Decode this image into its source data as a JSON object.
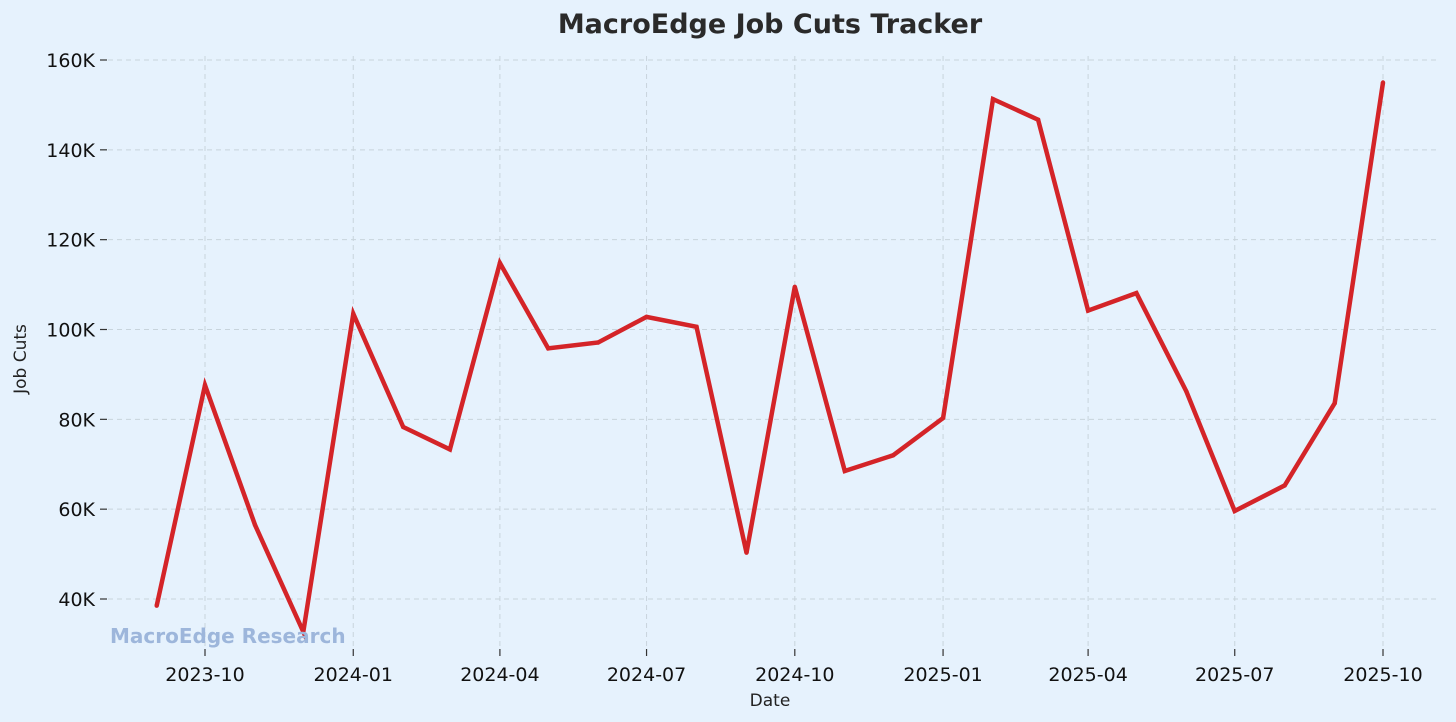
{
  "chart_data": {
    "type": "line",
    "title": "MacroEdge Job Cuts Tracker",
    "xlabel": "Date",
    "ylabel": "Job Cuts",
    "watermark": "MacroEdge Research",
    "x_ticks": [
      "2023-10-01",
      "2024-01-01",
      "2024-04-01",
      "2024-07-01",
      "2024-10-01",
      "2025-01-01",
      "2025-04-01",
      "2025-07-01",
      "2025-10-01"
    ],
    "x_tick_labels": [
      "2023-10",
      "2024-01",
      "2024-04",
      "2024-07",
      "2024-10",
      "2025-01",
      "2025-04",
      "2025-07",
      "2025-10"
    ],
    "y_ticks": [
      40000,
      60000,
      80000,
      100000,
      120000,
      140000,
      160000
    ],
    "y_tick_labels": [
      "40K",
      "60K",
      "80K",
      "100K",
      "120K",
      "140K",
      "160K"
    ],
    "ylim": [
      30200,
      161400
    ],
    "xlim": [
      "2023-08-01",
      "2025-10-31"
    ],
    "grid": true,
    "series": [
      {
        "color": "#D42428",
        "x": [
          "2023-09-01",
          "2023-10-01",
          "2023-11-01",
          "2023-12-01",
          "2024-01-01",
          "2024-02-01",
          "2024-03-01",
          "2024-04-01",
          "2024-05-01",
          "2024-06-01",
          "2024-07-01",
          "2024-08-01",
          "2024-09-01",
          "2024-10-01",
          "2024-11-01",
          "2024-12-01",
          "2025-01-01",
          "2025-02-01",
          "2025-03-01",
          "2025-04-01",
          "2025-05-01",
          "2025-06-01",
          "2025-07-01",
          "2025-08-01",
          "2025-09-01",
          "2025-10-01"
        ],
        "values": [
          38500,
          87600,
          56500,
          32700,
          103500,
          78300,
          73300,
          114800,
          95800,
          97100,
          102800,
          100600,
          50300,
          109500,
          68500,
          72000,
          80300,
          151300,
          146700,
          104200,
          108100,
          86200,
          59600,
          65300,
          83600,
          155000
        ]
      }
    ]
  }
}
